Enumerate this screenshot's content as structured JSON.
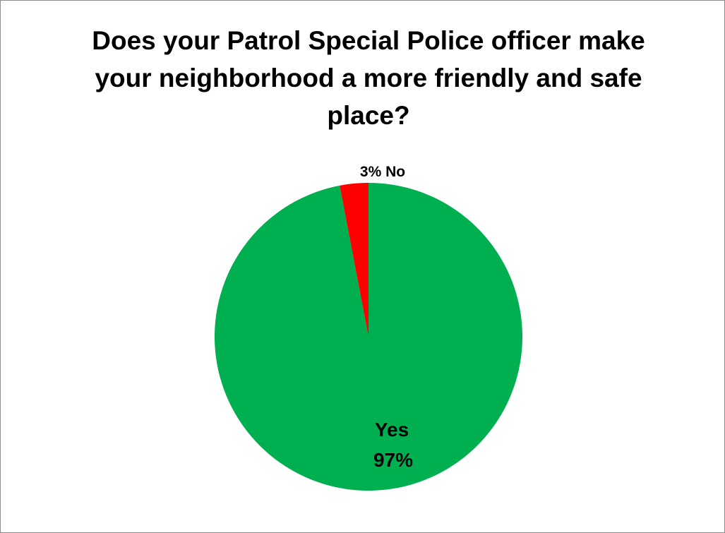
{
  "chart_data": {
    "type": "pie",
    "title": "Does your Patrol Special Police officer make your neighborhood a more friendly and safe place?",
    "slices": [
      {
        "label": "Yes",
        "value": 97,
        "value_text": "97%",
        "color": "#00b050"
      },
      {
        "label": "No",
        "value": 3,
        "value_text": "3%",
        "color": "#ff0000"
      }
    ],
    "legend": "none",
    "data_labels": [
      "3% No",
      "Yes",
      "97%"
    ]
  }
}
